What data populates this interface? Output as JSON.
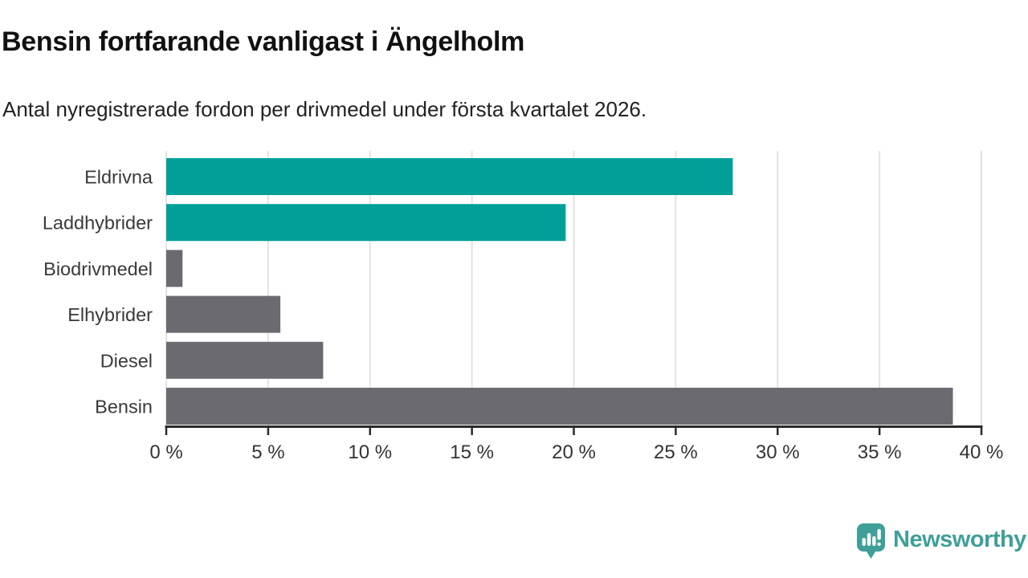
{
  "header": {
    "title": "Bensin fortfarande vanligast i Ängelholm",
    "subtitle": "Antal nyregistrerade fordon per drivmedel under första kvartalet 2026."
  },
  "chart_data": {
    "type": "bar",
    "orientation": "horizontal",
    "categories": [
      "Eldrivna",
      "Laddhybrider",
      "Biodrivmedel",
      "Elhybrider",
      "Diesel",
      "Bensin"
    ],
    "values": [
      27.8,
      19.6,
      0.8,
      5.6,
      7.7,
      38.6
    ],
    "unit": "%",
    "bar_colors": [
      "#00a099",
      "#00a099",
      "#6b6a70",
      "#6b6a70",
      "#6b6a70",
      "#6b6a70"
    ],
    "highlight_color": "#00a099",
    "default_color": "#6b6a70",
    "xlim": [
      0,
      40
    ],
    "x_tick_step": 5,
    "x_tick_labels": [
      "0 %",
      "5 %",
      "10 %",
      "15 %",
      "20 %",
      "25 %",
      "30 %",
      "35 %",
      "40 %"
    ],
    "grid": true,
    "legend": "none",
    "xlabel": "",
    "ylabel": ""
  },
  "footer": {
    "brand": "Newsworthy",
    "brand_color": "#3f9f99",
    "logo_icon": "newsworthy-speech-bubble-chart-icon"
  },
  "colors": {
    "background": "#ffffff",
    "title": "#111111",
    "subtitle": "#222222",
    "grid": "#e2e2e2",
    "axis": "#2a2a2a",
    "tick_label": "#333333",
    "category_label": "#3a3a3a"
  }
}
